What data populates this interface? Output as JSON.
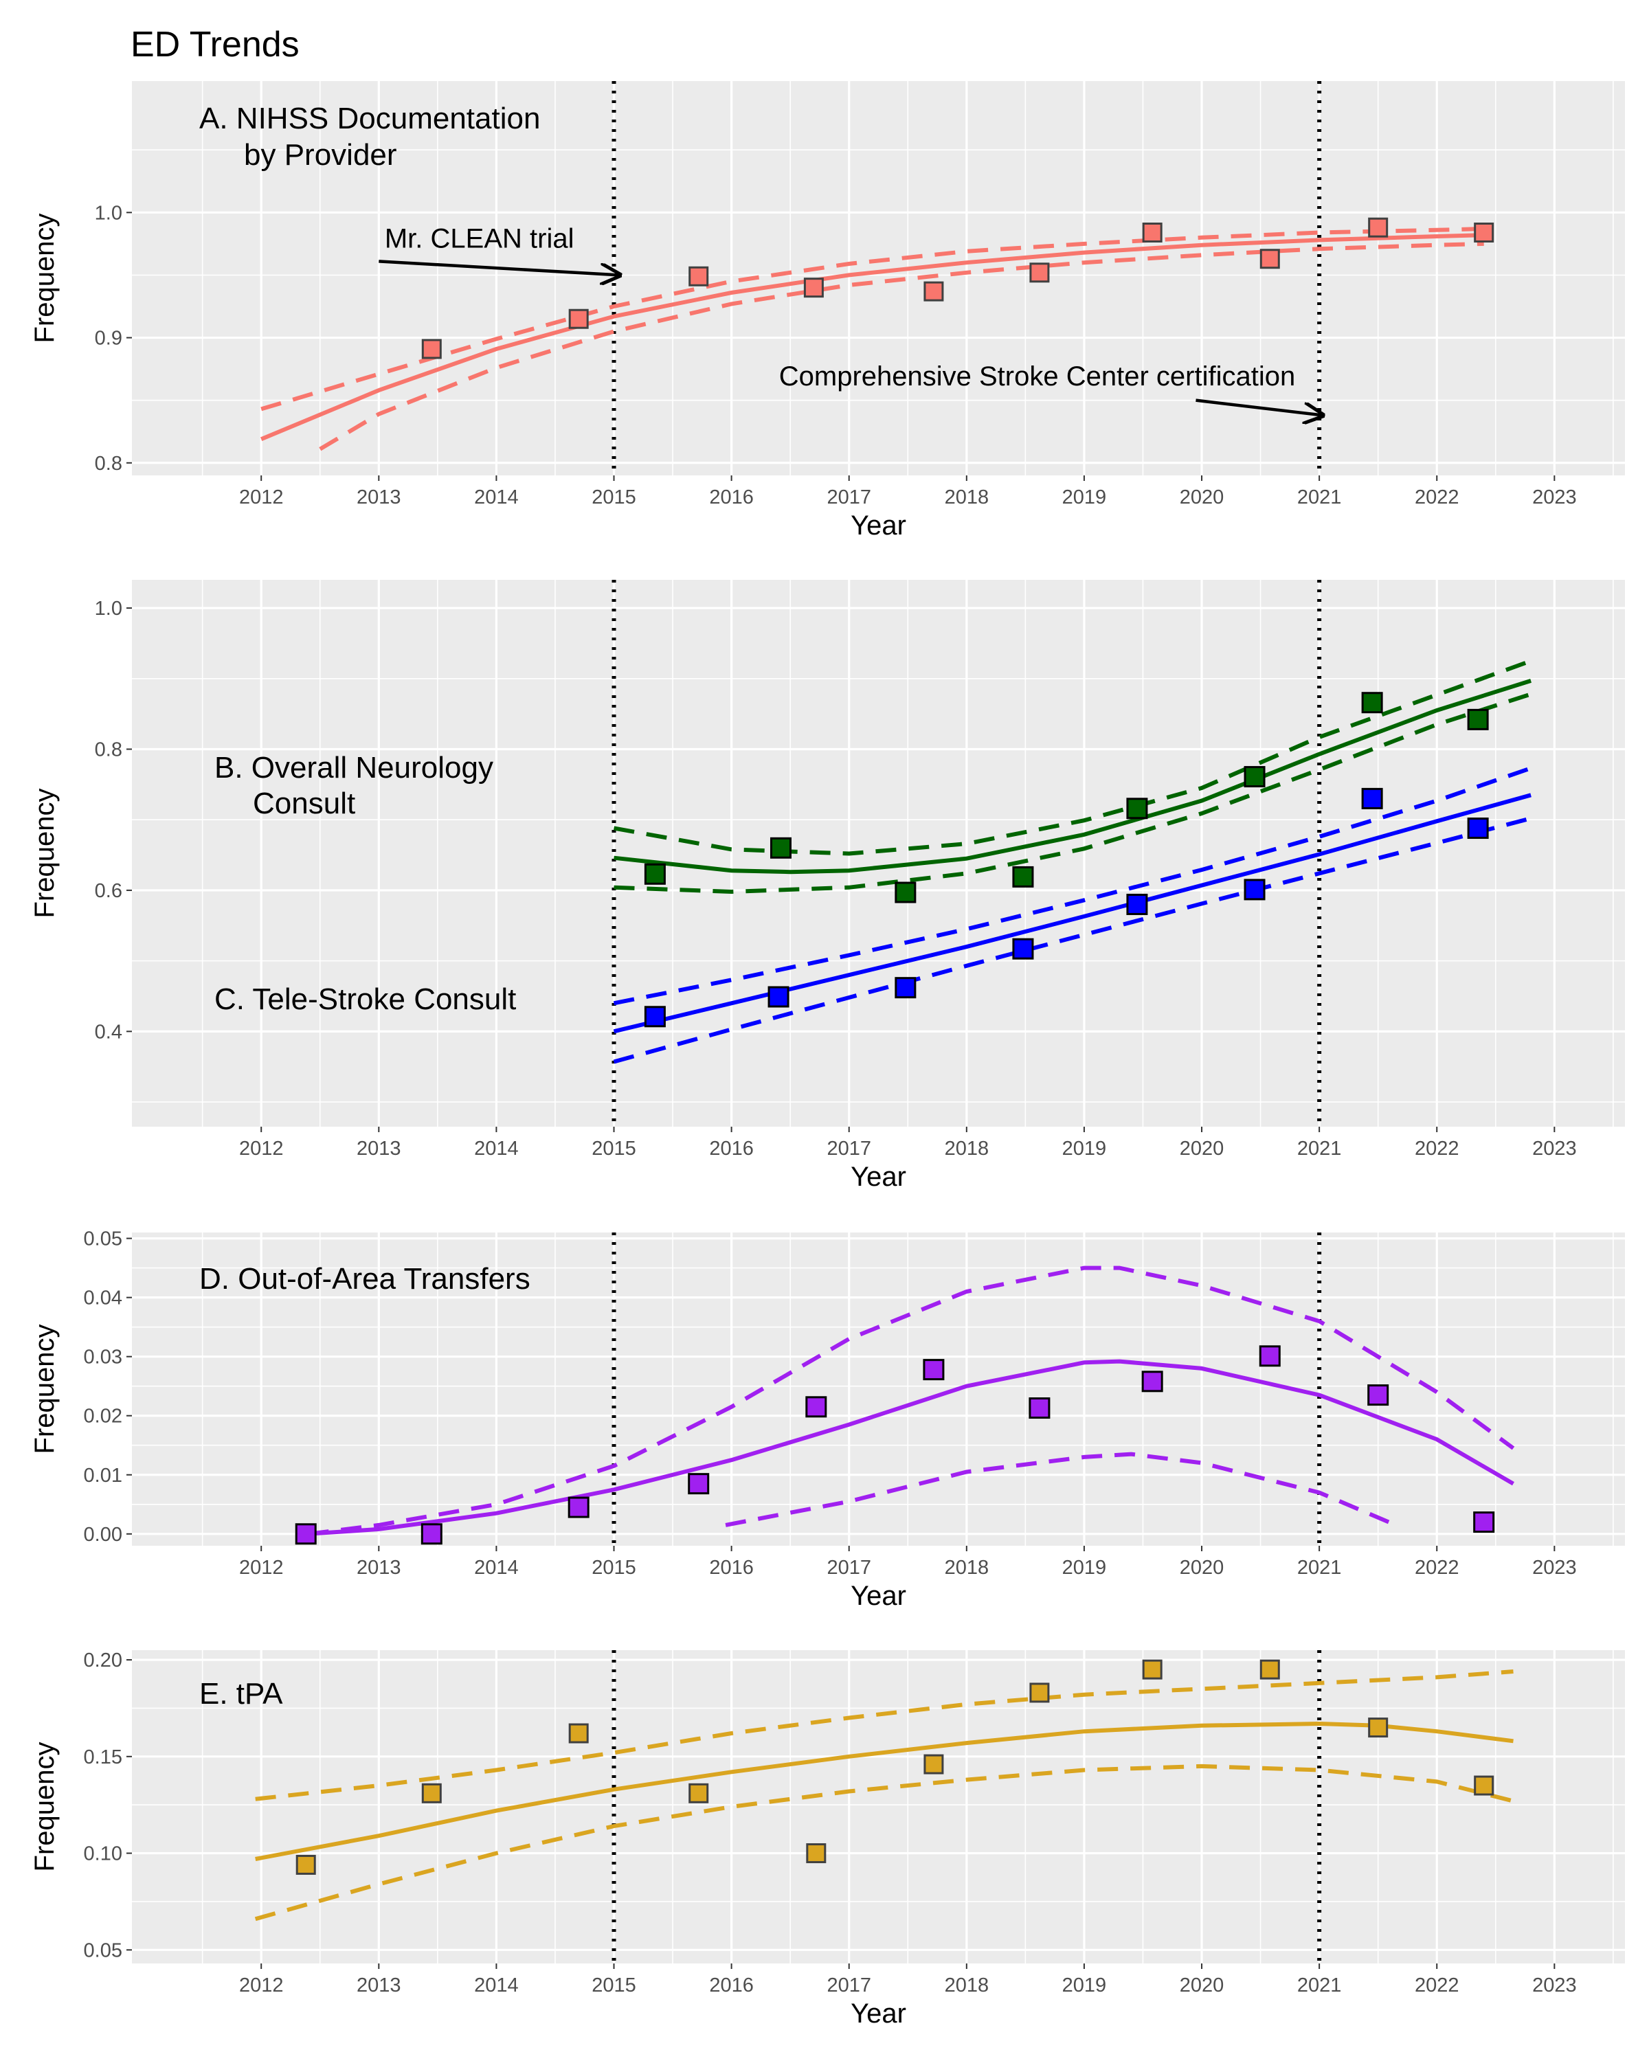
{
  "figure": {
    "title": "ED Trends",
    "xlabel": "Year",
    "ylabel": "Frequency"
  },
  "colors": {
    "nihss": "#F8766D",
    "neuro": "#006400",
    "tele": "#0000FF",
    "transfers": "#A020F0",
    "tpa": "#DAA520"
  },
  "chart_data": [
    {
      "id": "A",
      "type": "scatter",
      "labels": [
        "A. NIHSS Documentation",
        "by Provider"
      ],
      "xlim": [
        2010.9,
        2023.6
      ],
      "ylim": [
        0.79,
        1.105
      ],
      "xticks": [
        2012,
        2013,
        2014,
        2015,
        2016,
        2017,
        2018,
        2019,
        2020,
        2021,
        2022,
        2023
      ],
      "yticks": [
        0.8,
        0.9,
        1.0
      ],
      "ytick_labels": [
        "0.8",
        "0.9",
        "1.0"
      ],
      "vlines": [
        2015,
        2021
      ],
      "annotations": [
        {
          "text": "Mr. CLEAN trial",
          "x": 2013.05,
          "y": 0.972,
          "arrow_from": [
            2013.0,
            0.961
          ],
          "arrow_to": [
            2015.05,
            0.95
          ],
          "anchor": "start"
        },
        {
          "text": "Comprehensive Stroke Center certification",
          "x": 2018.6,
          "y": 0.862,
          "arrow_from": [
            2019.95,
            0.85
          ],
          "arrow_to": [
            2021.03,
            0.838
          ],
          "anchor": "middle"
        }
      ],
      "series": [
        {
          "name": "NIHSS documentation",
          "color": "#F8766D",
          "marker_edge": "#404040",
          "marker_size": 26,
          "points": [
            [
              2013.45,
              0.891
            ],
            [
              2014.7,
              0.915
            ],
            [
              2015.72,
              0.949
            ],
            [
              2016.7,
              0.94
            ],
            [
              2017.72,
              0.937
            ],
            [
              2018.62,
              0.952
            ],
            [
              2019.58,
              0.984
            ],
            [
              2020.58,
              0.963
            ],
            [
              2021.5,
              0.988
            ],
            [
              2022.4,
              0.984
            ]
          ],
          "fit": [
            [
              2012,
              0.819
            ],
            [
              2013,
              0.858
            ],
            [
              2014,
              0.891
            ],
            [
              2015,
              0.917
            ],
            [
              2016,
              0.936
            ],
            [
              2017,
              0.95
            ],
            [
              2018,
              0.96
            ],
            [
              2019,
              0.968
            ],
            [
              2020,
              0.974
            ],
            [
              2021,
              0.978
            ],
            [
              2022,
              0.981
            ],
            [
              2022.4,
              0.982
            ]
          ],
          "upper": [
            [
              2012,
              0.843
            ],
            [
              2013,
              0.871
            ],
            [
              2014,
              0.899
            ],
            [
              2015,
              0.925
            ],
            [
              2016,
              0.945
            ],
            [
              2017,
              0.959
            ],
            [
              2018,
              0.969
            ],
            [
              2019,
              0.975
            ],
            [
              2020,
              0.98
            ],
            [
              2021,
              0.984
            ],
            [
              2022,
              0.986
            ],
            [
              2022.4,
              0.987
            ]
          ],
          "lower": [
            [
              2012.5,
              0.811
            ],
            [
              2013,
              0.839
            ],
            [
              2014,
              0.876
            ],
            [
              2015,
              0.905
            ],
            [
              2016,
              0.927
            ],
            [
              2017,
              0.942
            ],
            [
              2018,
              0.952
            ],
            [
              2019,
              0.96
            ],
            [
              2020,
              0.966
            ],
            [
              2021,
              0.971
            ],
            [
              2022,
              0.974
            ],
            [
              2022.4,
              0.975
            ]
          ]
        }
      ]
    },
    {
      "id": "BC",
      "type": "scatter",
      "labels": [
        "B. Overall Neurology",
        "Consult",
        "C. Tele-Stroke Consult"
      ],
      "xlim": [
        2010.9,
        2023.6
      ],
      "ylim": [
        0.265,
        1.04
      ],
      "xticks": [
        2012,
        2013,
        2014,
        2015,
        2016,
        2017,
        2018,
        2019,
        2020,
        2021,
        2022,
        2023
      ],
      "yticks": [
        0.4,
        0.6,
        0.8,
        1.0
      ],
      "ytick_labels": [
        "0.4",
        "0.6",
        "0.8",
        "1.0"
      ],
      "vlines": [
        2015,
        2021
      ],
      "series": [
        {
          "name": "Overall Neurology Consult",
          "color": "#006400",
          "marker_edge": "#000000",
          "marker_size": 28,
          "points": [
            [
              2015.35,
              0.623
            ],
            [
              2016.42,
              0.66
            ],
            [
              2017.48,
              0.597
            ],
            [
              2018.48,
              0.619
            ],
            [
              2019.45,
              0.716
            ],
            [
              2020.45,
              0.761
            ],
            [
              2021.45,
              0.866
            ],
            [
              2022.35,
              0.842
            ]
          ],
          "fit": [
            [
              2015,
              0.646
            ],
            [
              2016,
              0.628
            ],
            [
              2016.5,
              0.626
            ],
            [
              2017,
              0.628
            ],
            [
              2018,
              0.645
            ],
            [
              2019,
              0.679
            ],
            [
              2020,
              0.727
            ],
            [
              2021,
              0.793
            ],
            [
              2022,
              0.855
            ],
            [
              2022.8,
              0.897
            ]
          ],
          "upper": [
            [
              2015,
              0.688
            ],
            [
              2016,
              0.658
            ],
            [
              2017,
              0.652
            ],
            [
              2018,
              0.666
            ],
            [
              2019,
              0.699
            ],
            [
              2020,
              0.745
            ],
            [
              2021,
              0.817
            ],
            [
              2022,
              0.877
            ],
            [
              2022.8,
              0.925
            ]
          ],
          "lower": [
            [
              2015,
              0.604
            ],
            [
              2016,
              0.598
            ],
            [
              2017,
              0.604
            ],
            [
              2018,
              0.624
            ],
            [
              2019,
              0.659
            ],
            [
              2020,
              0.709
            ],
            [
              2021,
              0.771
            ],
            [
              2022,
              0.835
            ],
            [
              2022.8,
              0.878
            ]
          ]
        },
        {
          "name": "Tele-Stroke Consult",
          "color": "#0000FF",
          "marker_edge": "#000000",
          "marker_size": 28,
          "points": [
            [
              2015.35,
              0.421
            ],
            [
              2016.4,
              0.449
            ],
            [
              2017.48,
              0.462
            ],
            [
              2018.48,
              0.517
            ],
            [
              2019.45,
              0.58
            ],
            [
              2020.45,
              0.601
            ],
            [
              2021.45,
              0.73
            ],
            [
              2022.35,
              0.688
            ]
          ],
          "fit": [
            [
              2015,
              0.4
            ],
            [
              2016,
              0.44
            ],
            [
              2017,
              0.48
            ],
            [
              2018,
              0.52
            ],
            [
              2019,
              0.563
            ],
            [
              2020,
              0.607
            ],
            [
              2021,
              0.651
            ],
            [
              2022,
              0.698
            ],
            [
              2022.8,
              0.735
            ]
          ],
          "upper": [
            [
              2015,
              0.44
            ],
            [
              2016,
              0.473
            ],
            [
              2017,
              0.508
            ],
            [
              2018,
              0.545
            ],
            [
              2019,
              0.586
            ],
            [
              2020,
              0.629
            ],
            [
              2021,
              0.676
            ],
            [
              2022,
              0.727
            ],
            [
              2022.8,
              0.773
            ]
          ],
          "lower": [
            [
              2015,
              0.357
            ],
            [
              2016,
              0.403
            ],
            [
              2017,
              0.448
            ],
            [
              2018,
              0.493
            ],
            [
              2019,
              0.537
            ],
            [
              2020,
              0.581
            ],
            [
              2021,
              0.624
            ],
            [
              2022,
              0.667
            ],
            [
              2022.8,
              0.702
            ]
          ]
        }
      ]
    },
    {
      "id": "D",
      "type": "scatter",
      "labels": [
        "D. Out-of-Area Transfers"
      ],
      "xlim": [
        2010.9,
        2023.6
      ],
      "ylim": [
        -0.002,
        0.051
      ],
      "xticks": [
        2012,
        2013,
        2014,
        2015,
        2016,
        2017,
        2018,
        2019,
        2020,
        2021,
        2022,
        2023
      ],
      "yticks": [
        0.0,
        0.01,
        0.02,
        0.03,
        0.04,
        0.05
      ],
      "ytick_labels": [
        "0.00",
        "0.01",
        "0.02",
        "0.03",
        "0.04",
        "0.05"
      ],
      "vlines": [
        2015,
        2021
      ],
      "series": [
        {
          "name": "Out-of-Area Transfers",
          "color": "#A020F0",
          "marker_edge": "#000000",
          "marker_size": 28,
          "points": [
            [
              2012.38,
              0.0
            ],
            [
              2013.45,
              0.0
            ],
            [
              2014.7,
              0.0045
            ],
            [
              2015.72,
              0.0085
            ],
            [
              2016.72,
              0.0215
            ],
            [
              2017.72,
              0.0278
            ],
            [
              2018.62,
              0.0213
            ],
            [
              2019.58,
              0.0258
            ],
            [
              2020.58,
              0.0301
            ],
            [
              2021.5,
              0.0235
            ],
            [
              2022.4,
              0.002
            ]
          ],
          "fit": [
            [
              2012.4,
              0.0
            ],
            [
              2013,
              0.0008
            ],
            [
              2014,
              0.0035
            ],
            [
              2015,
              0.0075
            ],
            [
              2016,
              0.0125
            ],
            [
              2017,
              0.0185
            ],
            [
              2018,
              0.025
            ],
            [
              2019,
              0.029
            ],
            [
              2019.3,
              0.0292
            ],
            [
              2020,
              0.028
            ],
            [
              2021,
              0.0235
            ],
            [
              2022,
              0.016
            ],
            [
              2022.65,
              0.0085
            ]
          ],
          "upper": [
            [
              2012.4,
              0.0
            ],
            [
              2013,
              0.0015
            ],
            [
              2014,
              0.005
            ],
            [
              2015,
              0.0115
            ],
            [
              2016,
              0.0215
            ],
            [
              2017,
              0.033
            ],
            [
              2018,
              0.041
            ],
            [
              2019,
              0.045
            ],
            [
              2019.3,
              0.045
            ],
            [
              2020,
              0.042
            ],
            [
              2021,
              0.036
            ],
            [
              2022,
              0.024
            ],
            [
              2022.65,
              0.0145
            ]
          ],
          "lower": [
            [
              2015.95,
              0.0015
            ],
            [
              2017,
              0.0055
            ],
            [
              2018,
              0.0105
            ],
            [
              2019,
              0.013
            ],
            [
              2019.4,
              0.0135
            ],
            [
              2020,
              0.012
            ],
            [
              2021,
              0.007
            ],
            [
              2021.65,
              0.0015
            ]
          ]
        }
      ]
    },
    {
      "id": "E",
      "type": "scatter",
      "labels": [
        "E. tPA"
      ],
      "xlim": [
        2010.9,
        2023.6
      ],
      "ylim": [
        0.043,
        0.205
      ],
      "xticks": [
        2012,
        2013,
        2014,
        2015,
        2016,
        2017,
        2018,
        2019,
        2020,
        2021,
        2022,
        2023
      ],
      "yticks": [
        0.05,
        0.1,
        0.15,
        0.2
      ],
      "ytick_labels": [
        "0.05",
        "0.10",
        "0.15",
        "0.20"
      ],
      "vlines": [
        2015,
        2021
      ],
      "series": [
        {
          "name": "tPA",
          "color": "#DAA520",
          "marker_edge": "#404040",
          "marker_size": 26,
          "points": [
            [
              2012.38,
              0.094
            ],
            [
              2013.45,
              0.131
            ],
            [
              2014.7,
              0.162
            ],
            [
              2015.72,
              0.131
            ],
            [
              2016.72,
              0.1
            ],
            [
              2017.72,
              0.146
            ],
            [
              2018.62,
              0.183
            ],
            [
              2019.58,
              0.195
            ],
            [
              2020.58,
              0.195
            ],
            [
              2021.5,
              0.165
            ],
            [
              2022.4,
              0.135
            ]
          ],
          "fit": [
            [
              2011.95,
              0.097
            ],
            [
              2013,
              0.109
            ],
            [
              2014,
              0.122
            ],
            [
              2015,
              0.133
            ],
            [
              2016,
              0.142
            ],
            [
              2017,
              0.15
            ],
            [
              2018,
              0.157
            ],
            [
              2019,
              0.163
            ],
            [
              2020,
              0.166
            ],
            [
              2021,
              0.167
            ],
            [
              2021.5,
              0.166
            ],
            [
              2022,
              0.163
            ],
            [
              2022.65,
              0.158
            ]
          ],
          "upper": [
            [
              2011.95,
              0.128
            ],
            [
              2013,
              0.135
            ],
            [
              2014,
              0.143
            ],
            [
              2015,
              0.152
            ],
            [
              2016,
              0.162
            ],
            [
              2017,
              0.17
            ],
            [
              2018,
              0.177
            ],
            [
              2019,
              0.182
            ],
            [
              2020,
              0.185
            ],
            [
              2021,
              0.188
            ],
            [
              2022,
              0.191
            ],
            [
              2022.65,
              0.194
            ]
          ],
          "lower": [
            [
              2011.95,
              0.066
            ],
            [
              2013,
              0.084
            ],
            [
              2014,
              0.1
            ],
            [
              2015,
              0.114
            ],
            [
              2016,
              0.124
            ],
            [
              2017,
              0.132
            ],
            [
              2018,
              0.138
            ],
            [
              2019,
              0.143
            ],
            [
              2020,
              0.145
            ],
            [
              2021,
              0.143
            ],
            [
              2022,
              0.137
            ],
            [
              2022.65,
              0.127
            ]
          ]
        }
      ]
    }
  ]
}
